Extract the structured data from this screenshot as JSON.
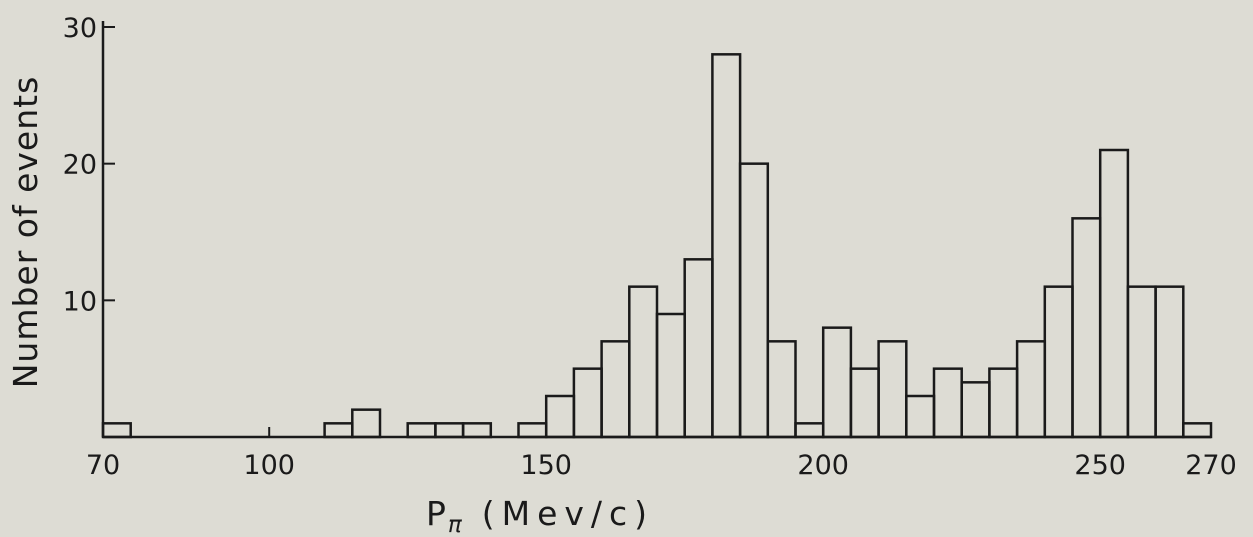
{
  "chart_data": {
    "type": "bar",
    "style": "histogram-step",
    "xlabel_main": "P",
    "xlabel_sub": "π",
    "xlabel_unit": "(Mev/c)",
    "ylabel": "Number of events",
    "xlim": [
      70,
      270
    ],
    "ylim": [
      0,
      30
    ],
    "x_ticks": [
      70,
      100,
      150,
      200,
      250,
      270
    ],
    "y_ticks": [
      10,
      20,
      30
    ],
    "bin_width": 5,
    "bins": [
      {
        "x0": 70,
        "x1": 75,
        "count": 1
      },
      {
        "x0": 75,
        "x1": 80,
        "count": 0
      },
      {
        "x0": 80,
        "x1": 85,
        "count": 0
      },
      {
        "x0": 85,
        "x1": 90,
        "count": 0
      },
      {
        "x0": 90,
        "x1": 95,
        "count": 0
      },
      {
        "x0": 95,
        "x1": 100,
        "count": 0
      },
      {
        "x0": 100,
        "x1": 105,
        "count": 0
      },
      {
        "x0": 105,
        "x1": 110,
        "count": 0
      },
      {
        "x0": 110,
        "x1": 115,
        "count": 1
      },
      {
        "x0": 115,
        "x1": 120,
        "count": 2
      },
      {
        "x0": 120,
        "x1": 125,
        "count": 0
      },
      {
        "x0": 125,
        "x1": 130,
        "count": 1
      },
      {
        "x0": 130,
        "x1": 135,
        "count": 1
      },
      {
        "x0": 135,
        "x1": 140,
        "count": 1
      },
      {
        "x0": 140,
        "x1": 145,
        "count": 0
      },
      {
        "x0": 145,
        "x1": 150,
        "count": 1
      },
      {
        "x0": 150,
        "x1": 155,
        "count": 3
      },
      {
        "x0": 155,
        "x1": 160,
        "count": 5
      },
      {
        "x0": 160,
        "x1": 165,
        "count": 7
      },
      {
        "x0": 165,
        "x1": 170,
        "count": 11
      },
      {
        "x0": 170,
        "x1": 175,
        "count": 9
      },
      {
        "x0": 175,
        "x1": 180,
        "count": 13
      },
      {
        "x0": 180,
        "x1": 185,
        "count": 28
      },
      {
        "x0": 185,
        "x1": 190,
        "count": 20
      },
      {
        "x0": 190,
        "x1": 195,
        "count": 7
      },
      {
        "x0": 195,
        "x1": 200,
        "count": 1
      },
      {
        "x0": 200,
        "x1": 205,
        "count": 8
      },
      {
        "x0": 205,
        "x1": 210,
        "count": 5
      },
      {
        "x0": 210,
        "x1": 215,
        "count": 7
      },
      {
        "x0": 215,
        "x1": 220,
        "count": 3
      },
      {
        "x0": 220,
        "x1": 225,
        "count": 5
      },
      {
        "x0": 225,
        "x1": 230,
        "count": 4
      },
      {
        "x0": 230,
        "x1": 235,
        "count": 5
      },
      {
        "x0": 235,
        "x1": 240,
        "count": 7
      },
      {
        "x0": 240,
        "x1": 245,
        "count": 11
      },
      {
        "x0": 245,
        "x1": 250,
        "count": 16
      },
      {
        "x0": 250,
        "x1": 255,
        "count": 21
      },
      {
        "x0": 255,
        "x1": 260,
        "count": 11
      },
      {
        "x0": 260,
        "x1": 265,
        "count": 11
      },
      {
        "x0": 265,
        "x1": 270,
        "count": 1
      }
    ],
    "grid": false,
    "legend": "none",
    "colors": {
      "background": "#dddcd4",
      "ink": "#1a1a1a"
    }
  }
}
